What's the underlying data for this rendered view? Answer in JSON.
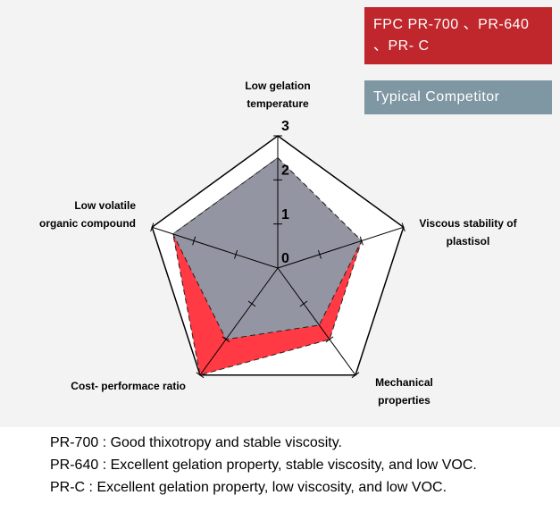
{
  "chart_data": {
    "type": "radar",
    "categories": [
      "Low gelation temperature",
      "Viscous stability of plastisol",
      "Mechanical properties",
      "Cost- performace ratio",
      "Low volatile organic compound"
    ],
    "series": [
      {
        "name": "FPC PR-700 、PR-640 、PR- C",
        "color": "#ff3a44",
        "values": [
          2.5,
          2.0,
          2.0,
          3.0,
          2.5
        ]
      },
      {
        "name": "Typical Competitor",
        "color": "#8e9aa8",
        "values": [
          2.5,
          2.0,
          1.6,
          2.0,
          2.5
        ]
      }
    ],
    "rlim": [
      0,
      3
    ],
    "rticks": [
      0,
      1,
      2,
      3
    ],
    "notes": [
      "PR-700 : Good thixotropy and stable viscosity.",
      "PR-640 : Excellent gelation property, stable viscosity, and low VOC.",
      "PR-C : Excellent gelation property, low viscosity, and low VOC."
    ]
  }
}
